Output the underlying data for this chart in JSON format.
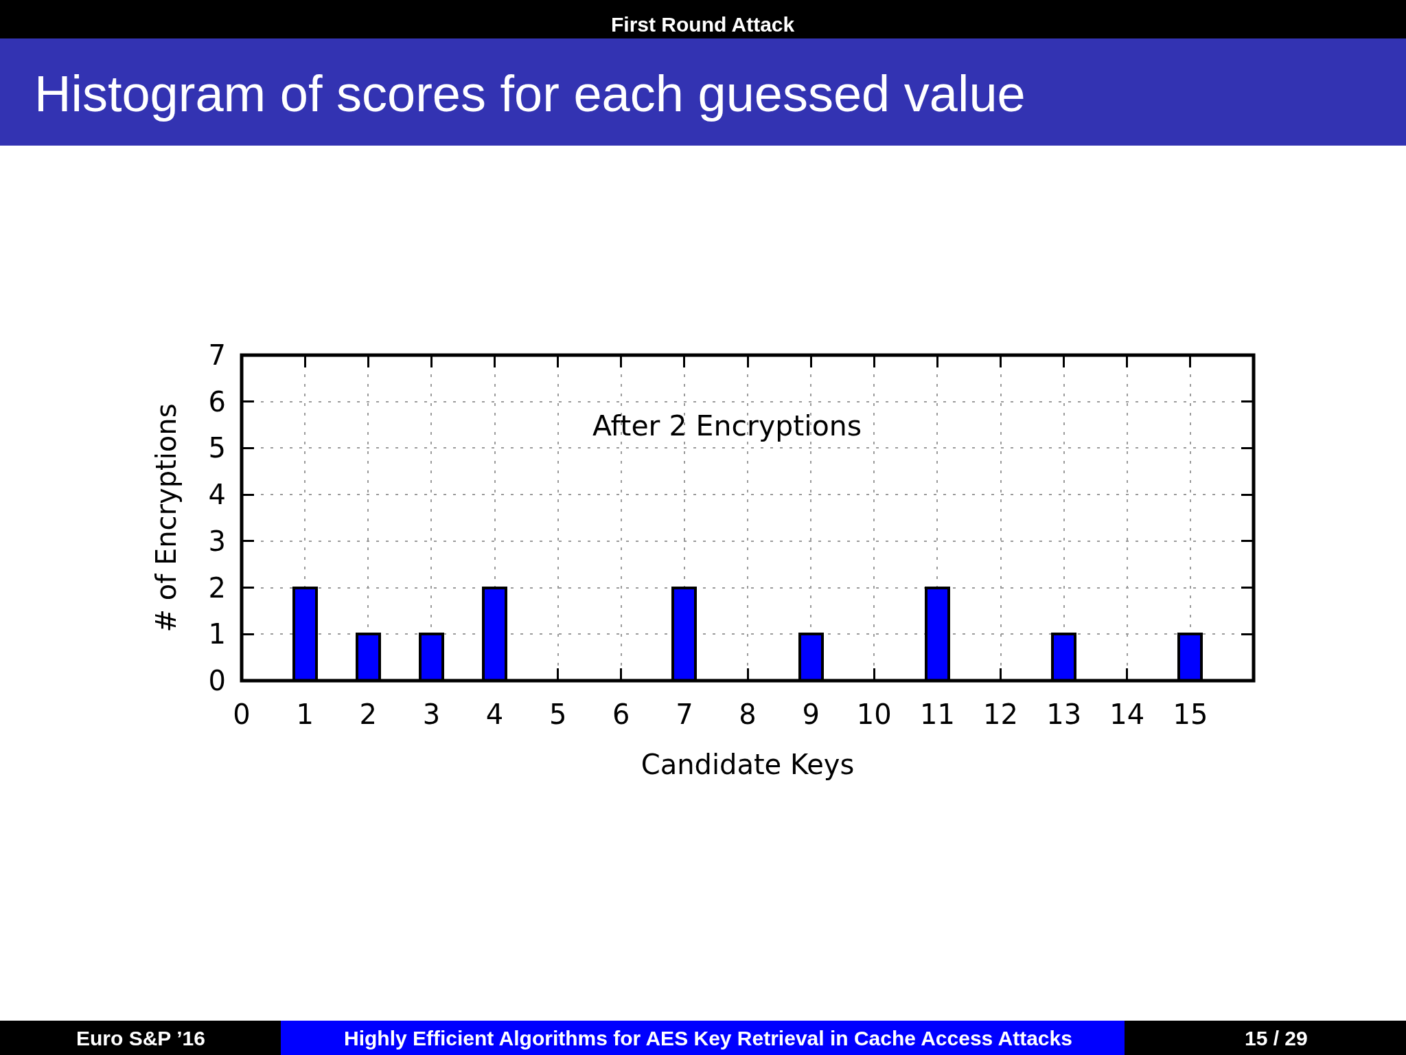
{
  "chart_data": {
    "type": "bar",
    "title": "Histogram of scores for each guessed value",
    "xlabel": "Candidate Keys",
    "ylabel": "# of Encryptions",
    "x": [
      1,
      2,
      3,
      4,
      7,
      9,
      11,
      13,
      15
    ],
    "values": [
      2,
      1,
      1,
      2,
      2,
      1,
      2,
      1,
      1
    ],
    "color": "#0000ff",
    "xlim": [
      0,
      16
    ],
    "xticks": [
      0,
      1,
      2,
      3,
      4,
      5,
      6,
      7,
      8,
      9,
      10,
      11,
      12,
      13,
      14,
      15
    ],
    "ylim": [
      0,
      7
    ],
    "yticks": [
      0,
      1,
      2,
      3,
      4,
      5,
      6,
      7
    ],
    "grid": true,
    "annotations": [
      "After 2 Encryptions",
      "First Round Attack",
      "Euro S&P ’16",
      "Highly Efficient Algorithms for AES Key Retrieval in Cache Access Attacks",
      "15 / 29"
    ]
  }
}
